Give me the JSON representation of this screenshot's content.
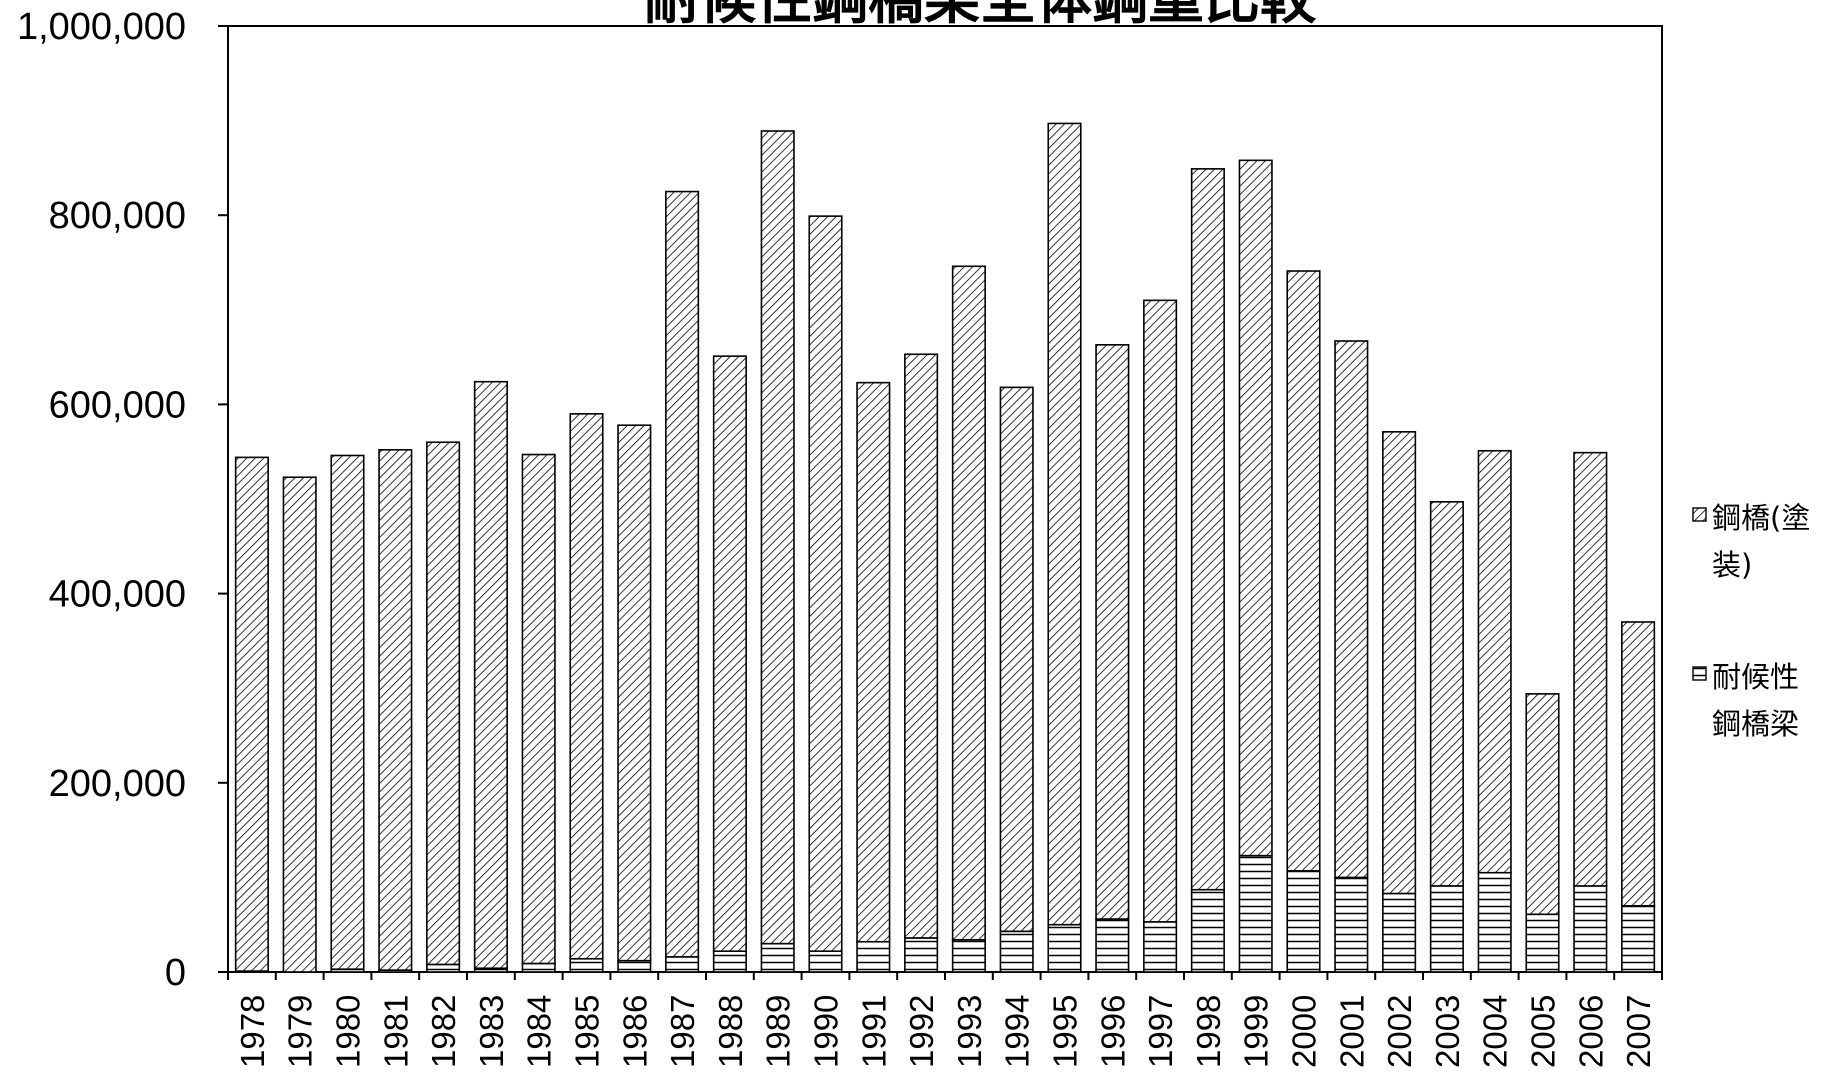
{
  "chart_data": {
    "type": "bar",
    "stacked": true,
    "title": "耐候性鋼橋梁全体鋼重比較",
    "xlabel": "",
    "ylabel": "",
    "ylim": [
      0,
      1000000
    ],
    "yticks": [
      0,
      200000,
      400000,
      600000,
      800000,
      1000000
    ],
    "ytick_labels": [
      "0",
      "200,000",
      "400,000",
      "600,000",
      "800,000",
      "1,000,000"
    ],
    "grid": false,
    "legend_position": "right",
    "categories": [
      "1978",
      "1979",
      "1980",
      "1981",
      "1982",
      "1983",
      "1984",
      "1985",
      "1986",
      "1987",
      "1988",
      "1989",
      "1990",
      "1991",
      "1992",
      "1993",
      "1994",
      "1995",
      "1996",
      "1997",
      "1998",
      "1999",
      "2000",
      "2001",
      "2002",
      "2003",
      "2004",
      "2005",
      "2006",
      "2007"
    ],
    "series": [
      {
        "name": "耐候性鋼橋梁",
        "pattern": "horizontal-lines",
        "values": [
          1000,
          0,
          3000,
          2000,
          8000,
          4000,
          9000,
          14000,
          12000,
          16000,
          22000,
          30000,
          22000,
          32000,
          36000,
          34000,
          43000,
          50000,
          56000,
          53000,
          87000,
          123000,
          107000,
          100000,
          83000,
          91000,
          105000,
          61000,
          91000,
          70000
        ]
      },
      {
        "name": "鋼橋(塗装)",
        "pattern": "diagonal-hatch",
        "values": [
          543000,
          523000,
          543000,
          550000,
          552000,
          620000,
          538000,
          576000,
          566000,
          809000,
          629000,
          859000,
          777000,
          591000,
          617000,
          712000,
          575000,
          847000,
          607000,
          657000,
          762000,
          735000,
          634000,
          567000,
          488000,
          406000,
          446000,
          233000,
          458000,
          300000
        ]
      }
    ],
    "legend": [
      {
        "series": 1,
        "lines": [
          "鋼橋(塗",
          "装)"
        ]
      },
      {
        "series": 0,
        "lines": [
          "耐候性",
          "鋼橋梁"
        ]
      }
    ],
    "colors": {
      "bar_stroke": "#000000",
      "pattern": "#000000",
      "background": "#ffffff"
    }
  }
}
